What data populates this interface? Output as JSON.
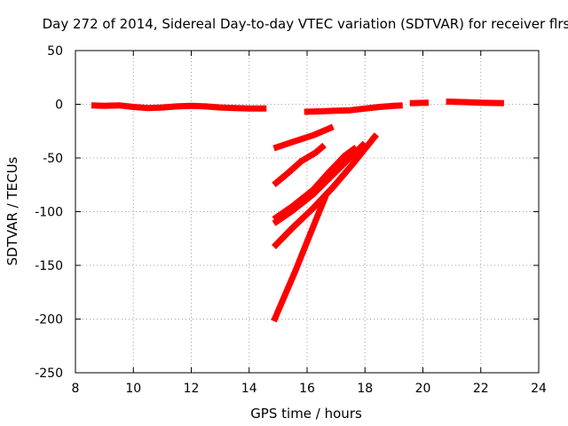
{
  "chart_data": {
    "type": "line",
    "title": "Day 272 of 2014, Sidereal Day-to-day VTEC variation (SDTVAR) for receiver flrs",
    "xlabel": "GPS time / hours",
    "ylabel": "SDTVAR / TECUs",
    "xlim": [
      8,
      24
    ],
    "ylim": [
      -250,
      50
    ],
    "xticks": [
      8,
      10,
      12,
      14,
      16,
      18,
      20,
      22,
      24
    ],
    "yticks": [
      -250,
      -200,
      -150,
      -100,
      -50,
      0,
      50
    ],
    "grid": true,
    "legend": "none",
    "color": "#ff0000",
    "series": [
      {
        "points": [
          [
            8.55,
            -1
          ],
          [
            9.0,
            -1.5
          ],
          [
            9.5,
            -1
          ],
          [
            10.0,
            -2.5
          ],
          [
            10.5,
            -3.5
          ],
          [
            11.0,
            -3
          ],
          [
            11.5,
            -2
          ],
          [
            12.0,
            -1.5
          ],
          [
            12.5,
            -2
          ],
          [
            13.0,
            -3
          ],
          [
            13.5,
            -3.5
          ],
          [
            14.0,
            -4
          ],
          [
            14.6,
            -4
          ]
        ]
      },
      {
        "points": [
          [
            15.9,
            -7
          ],
          [
            16.5,
            -6.5
          ],
          [
            17.0,
            -6
          ],
          [
            17.5,
            -5.5
          ],
          [
            18.0,
            -4
          ],
          [
            18.5,
            -2.5
          ],
          [
            19.0,
            -1.5
          ],
          [
            19.3,
            -1
          ]
        ]
      },
      {
        "points": [
          [
            19.55,
            1
          ],
          [
            20.2,
            1.5
          ]
        ]
      },
      {
        "points": [
          [
            20.8,
            2.5
          ],
          [
            21.5,
            2
          ],
          [
            22.0,
            1.5
          ],
          [
            22.8,
            1
          ]
        ]
      },
      {
        "points": [
          [
            14.85,
            -41
          ],
          [
            15.5,
            -35
          ],
          [
            16.2,
            -29
          ],
          [
            16.9,
            -21
          ]
        ]
      },
      {
        "points": [
          [
            14.85,
            -75
          ],
          [
            15.3,
            -65
          ],
          [
            15.8,
            -53
          ],
          [
            16.3,
            -45
          ],
          [
            16.6,
            -38
          ]
        ]
      },
      {
        "points": [
          [
            14.85,
            -107
          ],
          [
            15.5,
            -95
          ],
          [
            16.2,
            -80
          ],
          [
            16.8,
            -62
          ],
          [
            17.3,
            -48
          ],
          [
            17.7,
            -40
          ]
        ]
      },
      {
        "points": [
          [
            14.85,
            -111
          ],
          [
            15.5,
            -99
          ],
          [
            16.2,
            -84
          ],
          [
            16.8,
            -68
          ],
          [
            17.4,
            -52
          ],
          [
            18.0,
            -36
          ]
        ]
      },
      {
        "points": [
          [
            14.85,
            -133
          ],
          [
            15.5,
            -115
          ],
          [
            16.2,
            -97
          ],
          [
            16.9,
            -77
          ],
          [
            17.6,
            -55
          ],
          [
            18.4,
            -28
          ]
        ]
      },
      {
        "points": [
          [
            14.85,
            -202
          ],
          [
            15.2,
            -180
          ],
          [
            15.6,
            -155
          ],
          [
            16.0,
            -128
          ],
          [
            16.3,
            -108
          ],
          [
            16.65,
            -85
          ]
        ]
      }
    ]
  }
}
